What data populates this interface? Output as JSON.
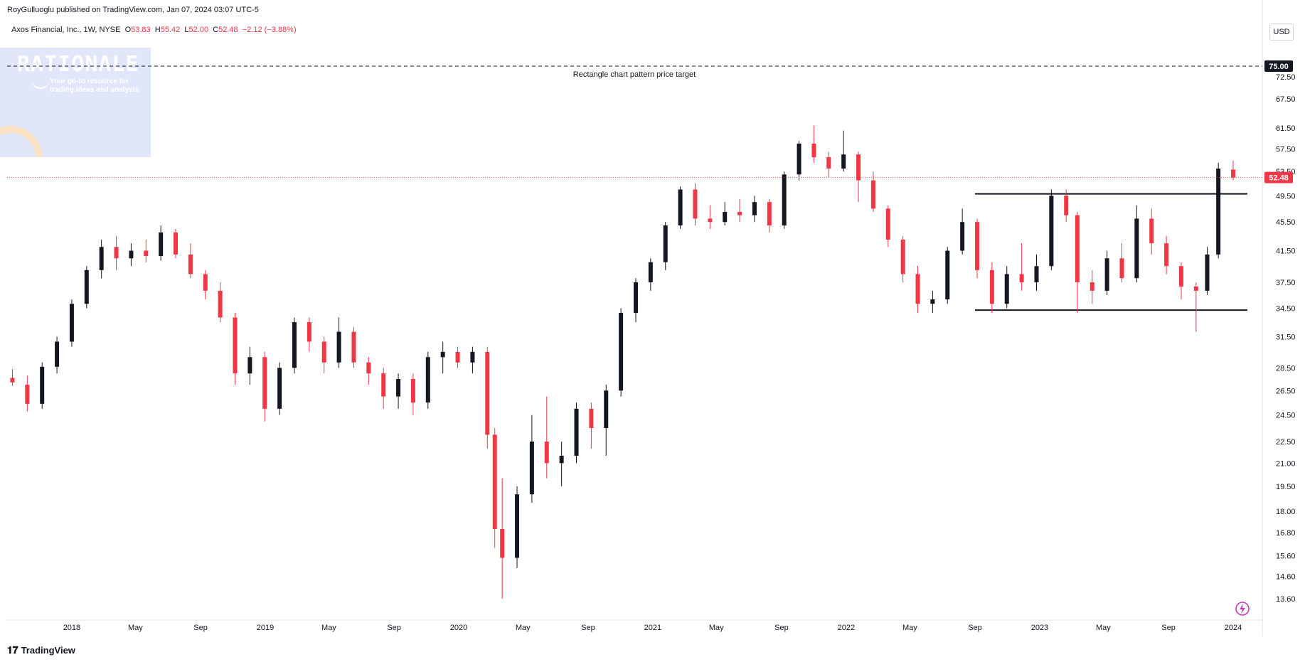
{
  "header": {
    "publisher_line": "RoyGulluoglu published on TradingView.com, Jan 07, 2024 03:07 UTC-5"
  },
  "symbol": {
    "name": "Axos Financial, Inc., 1W, NYSE",
    "o_label": "O",
    "o_value": "53.83",
    "h_label": "H",
    "h_value": "55.42",
    "l_label": "L",
    "l_value": "52.00",
    "c_label": "C",
    "c_value": "52.48",
    "change": "−2.12 (−3.88%)"
  },
  "currency": "USD",
  "watermark": {
    "title": "RATIONALE",
    "subtitle": "Your go-to resource for trading ideas and analysis"
  },
  "footer": {
    "brand": "TradingView",
    "logo_icon": "tradingview-logo-icon"
  },
  "colors": {
    "up": "#131722",
    "down": "#f23645",
    "last_price": "#f23645",
    "target": "#131722"
  },
  "chart_data": {
    "type": "candlestick",
    "scale": "log",
    "ylim": [
      12.9,
      80.5
    ],
    "xlim": [
      "2017-09-01",
      "2024-02-25"
    ],
    "y_ticks": [
      "13.60",
      "14.60",
      "15.60",
      "16.80",
      "18.00",
      "19.50",
      "21.00",
      "22.50",
      "24.50",
      "26.50",
      "28.50",
      "31.50",
      "34.50",
      "37.50",
      "41.50",
      "45.50",
      "49.50",
      "53.50",
      "57.50",
      "61.50",
      "67.50",
      "72.50"
    ],
    "x_ticks": [
      {
        "label": "2018",
        "date": "2018-01-01"
      },
      {
        "label": "May",
        "date": "2018-05-01"
      },
      {
        "label": "Sep",
        "date": "2018-09-01"
      },
      {
        "label": "2019",
        "date": "2019-01-01"
      },
      {
        "label": "May",
        "date": "2019-05-01"
      },
      {
        "label": "Sep",
        "date": "2019-09-01"
      },
      {
        "label": "2020",
        "date": "2020-01-01"
      },
      {
        "label": "May",
        "date": "2020-05-01"
      },
      {
        "label": "Sep",
        "date": "2020-09-01"
      },
      {
        "label": "2021",
        "date": "2021-01-01"
      },
      {
        "label": "May",
        "date": "2021-05-01"
      },
      {
        "label": "Sep",
        "date": "2021-09-01"
      },
      {
        "label": "2022",
        "date": "2022-01-01"
      },
      {
        "label": "May",
        "date": "2022-05-01"
      },
      {
        "label": "Sep",
        "date": "2022-09-01"
      },
      {
        "label": "2023",
        "date": "2023-01-01"
      },
      {
        "label": "May",
        "date": "2023-05-01"
      },
      {
        "label": "Sep",
        "date": "2023-09-01"
      },
      {
        "label": "2024",
        "date": "2024-01-01"
      }
    ],
    "series": [
      {
        "date": "2017-09-11",
        "o": 27.6,
        "h": 28.4,
        "l": 26.9,
        "c": 27.2
      },
      {
        "date": "2017-10-09",
        "o": 27.0,
        "h": 27.8,
        "l": 24.8,
        "c": 25.4
      },
      {
        "date": "2017-11-06",
        "o": 25.4,
        "h": 29.0,
        "l": 25.0,
        "c": 28.6
      },
      {
        "date": "2017-12-04",
        "o": 28.6,
        "h": 31.5,
        "l": 28.0,
        "c": 31.0
      },
      {
        "date": "2018-01-01",
        "o": 31.0,
        "h": 35.5,
        "l": 30.5,
        "c": 35.0
      },
      {
        "date": "2018-01-29",
        "o": 35.0,
        "h": 39.5,
        "l": 34.5,
        "c": 39.0
      },
      {
        "date": "2018-02-26",
        "o": 39.0,
        "h": 43.0,
        "l": 38.0,
        "c": 42.0
      },
      {
        "date": "2018-03-26",
        "o": 42.0,
        "h": 43.5,
        "l": 39.0,
        "c": 40.5
      },
      {
        "date": "2018-04-23",
        "o": 40.5,
        "h": 42.5,
        "l": 39.5,
        "c": 41.5
      },
      {
        "date": "2018-05-21",
        "o": 41.5,
        "h": 43.0,
        "l": 40.0,
        "c": 40.8
      },
      {
        "date": "2018-06-18",
        "o": 40.8,
        "h": 45.0,
        "l": 40.2,
        "c": 44.0
      },
      {
        "date": "2018-07-16",
        "o": 44.0,
        "h": 44.5,
        "l": 40.5,
        "c": 41.0
      },
      {
        "date": "2018-08-13",
        "o": 41.0,
        "h": 42.5,
        "l": 38.0,
        "c": 38.5
      },
      {
        "date": "2018-09-10",
        "o": 38.5,
        "h": 39.0,
        "l": 35.5,
        "c": 36.5
      },
      {
        "date": "2018-10-08",
        "o": 36.5,
        "h": 37.5,
        "l": 33.0,
        "c": 33.5
      },
      {
        "date": "2018-11-05",
        "o": 33.5,
        "h": 34.0,
        "l": 27.0,
        "c": 28.0
      },
      {
        "date": "2018-12-03",
        "o": 28.0,
        "h": 30.5,
        "l": 27.0,
        "c": 29.5
      },
      {
        "date": "2018-12-31",
        "o": 29.5,
        "h": 30.0,
        "l": 24.0,
        "c": 25.0
      },
      {
        "date": "2019-01-28",
        "o": 25.0,
        "h": 29.0,
        "l": 24.5,
        "c": 28.5
      },
      {
        "date": "2019-02-25",
        "o": 28.5,
        "h": 33.5,
        "l": 28.0,
        "c": 33.0
      },
      {
        "date": "2019-03-25",
        "o": 33.0,
        "h": 33.5,
        "l": 30.0,
        "c": 31.0
      },
      {
        "date": "2019-04-22",
        "o": 31.0,
        "h": 31.5,
        "l": 28.0,
        "c": 29.0
      },
      {
        "date": "2019-05-20",
        "o": 29.0,
        "h": 33.5,
        "l": 28.5,
        "c": 32.0
      },
      {
        "date": "2019-06-17",
        "o": 32.0,
        "h": 32.5,
        "l": 28.5,
        "c": 29.0
      },
      {
        "date": "2019-07-15",
        "o": 29.0,
        "h": 29.5,
        "l": 27.0,
        "c": 28.0
      },
      {
        "date": "2019-08-12",
        "o": 28.0,
        "h": 28.5,
        "l": 25.0,
        "c": 26.0
      },
      {
        "date": "2019-09-09",
        "o": 26.0,
        "h": 28.0,
        "l": 25.0,
        "c": 27.5
      },
      {
        "date": "2019-10-07",
        "o": 27.5,
        "h": 28.0,
        "l": 24.5,
        "c": 25.5
      },
      {
        "date": "2019-11-04",
        "o": 25.5,
        "h": 30.0,
        "l": 25.0,
        "c": 29.5
      },
      {
        "date": "2019-12-02",
        "o": 29.5,
        "h": 31.0,
        "l": 28.0,
        "c": 30.0
      },
      {
        "date": "2019-12-30",
        "o": 30.0,
        "h": 30.5,
        "l": 28.5,
        "c": 29.0
      },
      {
        "date": "2020-01-27",
        "o": 29.0,
        "h": 30.5,
        "l": 28.0,
        "c": 30.0
      },
      {
        "date": "2020-02-24",
        "o": 30.0,
        "h": 30.5,
        "l": 22.0,
        "c": 23.0
      },
      {
        "date": "2020-03-09",
        "o": 23.0,
        "h": 23.5,
        "l": 16.0,
        "c": 17.0
      },
      {
        "date": "2020-03-23",
        "o": 17.0,
        "h": 20.0,
        "l": 13.6,
        "c": 15.5
      },
      {
        "date": "2020-04-20",
        "o": 15.5,
        "h": 19.5,
        "l": 15.0,
        "c": 19.0
      },
      {
        "date": "2020-05-18",
        "o": 19.0,
        "h": 24.5,
        "l": 18.5,
        "c": 22.5
      },
      {
        "date": "2020-06-15",
        "o": 22.5,
        "h": 26.0,
        "l": 20.0,
        "c": 21.0
      },
      {
        "date": "2020-07-13",
        "o": 21.0,
        "h": 22.5,
        "l": 19.5,
        "c": 21.5
      },
      {
        "date": "2020-08-10",
        "o": 21.5,
        "h": 25.5,
        "l": 21.0,
        "c": 25.0
      },
      {
        "date": "2020-09-07",
        "o": 25.0,
        "h": 25.5,
        "l": 22.0,
        "c": 23.5
      },
      {
        "date": "2020-10-05",
        "o": 23.5,
        "h": 27.0,
        "l": 21.5,
        "c": 26.5
      },
      {
        "date": "2020-11-02",
        "o": 26.5,
        "h": 34.5,
        "l": 26.0,
        "c": 34.0
      },
      {
        "date": "2020-11-30",
        "o": 34.0,
        "h": 38.0,
        "l": 33.0,
        "c": 37.5
      },
      {
        "date": "2020-12-28",
        "o": 37.5,
        "h": 40.5,
        "l": 36.5,
        "c": 40.0
      },
      {
        "date": "2021-01-25",
        "o": 40.0,
        "h": 45.5,
        "l": 39.0,
        "c": 45.0
      },
      {
        "date": "2021-02-22",
        "o": 45.0,
        "h": 51.0,
        "l": 44.5,
        "c": 50.5
      },
      {
        "date": "2021-03-22",
        "o": 50.5,
        "h": 51.5,
        "l": 45.0,
        "c": 46.0
      },
      {
        "date": "2021-04-19",
        "o": 46.0,
        "h": 48.0,
        "l": 44.5,
        "c": 45.5
      },
      {
        "date": "2021-05-17",
        "o": 45.5,
        "h": 48.5,
        "l": 45.0,
        "c": 47.0
      },
      {
        "date": "2021-06-14",
        "o": 47.0,
        "h": 49.0,
        "l": 45.5,
        "c": 46.5
      },
      {
        "date": "2021-07-12",
        "o": 46.5,
        "h": 49.5,
        "l": 45.5,
        "c": 48.5
      },
      {
        "date": "2021-08-09",
        "o": 48.5,
        "h": 49.0,
        "l": 44.0,
        "c": 45.0
      },
      {
        "date": "2021-09-06",
        "o": 45.0,
        "h": 53.5,
        "l": 44.5,
        "c": 53.0
      },
      {
        "date": "2021-10-04",
        "o": 53.0,
        "h": 59.0,
        "l": 52.0,
        "c": 58.5
      },
      {
        "date": "2021-11-01",
        "o": 58.5,
        "h": 62.0,
        "l": 55.0,
        "c": 56.0
      },
      {
        "date": "2021-11-29",
        "o": 56.0,
        "h": 57.0,
        "l": 52.5,
        "c": 54.0
      },
      {
        "date": "2021-12-27",
        "o": 54.0,
        "h": 61.0,
        "l": 53.5,
        "c": 56.5
      },
      {
        "date": "2022-01-24",
        "o": 56.5,
        "h": 57.0,
        "l": 48.5,
        "c": 52.0
      },
      {
        "date": "2022-02-21",
        "o": 52.0,
        "h": 53.5,
        "l": 47.0,
        "c": 47.5
      },
      {
        "date": "2022-03-21",
        "o": 47.5,
        "h": 48.0,
        "l": 42.0,
        "c": 43.0
      },
      {
        "date": "2022-04-18",
        "o": 43.0,
        "h": 43.5,
        "l": 37.5,
        "c": 38.5
      },
      {
        "date": "2022-05-16",
        "o": 38.5,
        "h": 39.5,
        "l": 34.0,
        "c": 35.0
      },
      {
        "date": "2022-06-13",
        "o": 35.0,
        "h": 36.5,
        "l": 34.0,
        "c": 35.5
      },
      {
        "date": "2022-07-11",
        "o": 35.5,
        "h": 42.0,
        "l": 35.0,
        "c": 41.5
      },
      {
        "date": "2022-08-08",
        "o": 41.5,
        "h": 47.5,
        "l": 41.0,
        "c": 45.5
      },
      {
        "date": "2022-09-05",
        "o": 45.5,
        "h": 46.0,
        "l": 38.0,
        "c": 39.0
      },
      {
        "date": "2022-10-03",
        "o": 39.0,
        "h": 40.0,
        "l": 34.0,
        "c": 35.0
      },
      {
        "date": "2022-10-31",
        "o": 35.0,
        "h": 39.5,
        "l": 34.5,
        "c": 38.5
      },
      {
        "date": "2022-11-28",
        "o": 38.5,
        "h": 42.5,
        "l": 36.5,
        "c": 37.5
      },
      {
        "date": "2022-12-26",
        "o": 37.5,
        "h": 41.0,
        "l": 36.5,
        "c": 39.5
      },
      {
        "date": "2023-01-23",
        "o": 39.5,
        "h": 50.5,
        "l": 39.0,
        "c": 49.5
      },
      {
        "date": "2023-02-20",
        "o": 49.5,
        "h": 50.5,
        "l": 45.5,
        "c": 46.5
      },
      {
        "date": "2023-03-13",
        "o": 46.5,
        "h": 47.0,
        "l": 34.0,
        "c": 37.5
      },
      {
        "date": "2023-04-10",
        "o": 37.5,
        "h": 39.0,
        "l": 35.0,
        "c": 36.5
      },
      {
        "date": "2023-05-08",
        "o": 36.5,
        "h": 41.5,
        "l": 36.0,
        "c": 40.5
      },
      {
        "date": "2023-06-05",
        "o": 40.5,
        "h": 42.5,
        "l": 37.5,
        "c": 38.0
      },
      {
        "date": "2023-07-03",
        "o": 38.0,
        "h": 48.0,
        "l": 37.5,
        "c": 46.0
      },
      {
        "date": "2023-07-31",
        "o": 46.0,
        "h": 47.5,
        "l": 41.0,
        "c": 42.5
      },
      {
        "date": "2023-08-28",
        "o": 42.5,
        "h": 43.5,
        "l": 38.5,
        "c": 39.5
      },
      {
        "date": "2023-09-25",
        "o": 39.5,
        "h": 40.0,
        "l": 35.5,
        "c": 37.0
      },
      {
        "date": "2023-10-23",
        "o": 37.0,
        "h": 37.5,
        "l": 32.0,
        "c": 36.5
      },
      {
        "date": "2023-11-13",
        "o": 36.5,
        "h": 42.0,
        "l": 36.0,
        "c": 41.0
      },
      {
        "date": "2023-12-04",
        "o": 41.0,
        "h": 55.0,
        "l": 40.5,
        "c": 54.0
      },
      {
        "date": "2024-01-01",
        "o": 53.83,
        "h": 55.42,
        "l": 52.0,
        "c": 52.48
      }
    ],
    "last_price": "52.48",
    "target_price": "75.00",
    "annotations": [
      "Rectangle chart pattern price target"
    ],
    "levels": [
      {
        "name": "rectangle-resistance",
        "from": "2022-09-01",
        "to": "2024-01-01",
        "price": 49.8
      },
      {
        "name": "rectangle-support",
        "from": "2022-09-01",
        "to": "2024-01-01",
        "price": 34.3
      }
    ],
    "grid": false,
    "legend": "none"
  }
}
